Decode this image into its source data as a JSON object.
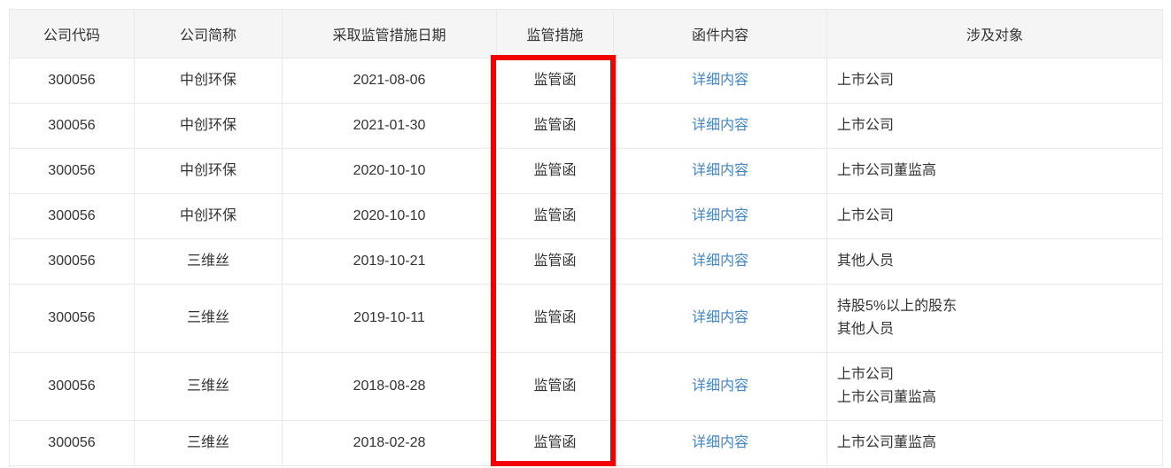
{
  "colors": {
    "link": "#4285c4",
    "highlight": "#f20000",
    "header_bg": "#f5f5f6",
    "border": "#e9e9e9",
    "text": "#333333",
    "page_bg": "#ffffff"
  },
  "table": {
    "columns": [
      {
        "key": "code",
        "label": "公司代码"
      },
      {
        "key": "name",
        "label": "公司简称"
      },
      {
        "key": "date",
        "label": "采取监管措施日期"
      },
      {
        "key": "measure",
        "label": "监管措施"
      },
      {
        "key": "letter",
        "label": "函件内容"
      },
      {
        "key": "target",
        "label": "涉及对象"
      }
    ],
    "rows": [
      {
        "code": "300056",
        "name": "中创环保",
        "date": "2021-08-06",
        "measure": "监管函",
        "letter": "详细内容",
        "targets": [
          "上市公司"
        ]
      },
      {
        "code": "300056",
        "name": "中创环保",
        "date": "2021-01-30",
        "measure": "监管函",
        "letter": "详细内容",
        "targets": [
          "上市公司"
        ]
      },
      {
        "code": "300056",
        "name": "中创环保",
        "date": "2020-10-10",
        "measure": "监管函",
        "letter": "详细内容",
        "targets": [
          "上市公司董监高"
        ]
      },
      {
        "code": "300056",
        "name": "中创环保",
        "date": "2020-10-10",
        "measure": "监管函",
        "letter": "详细内容",
        "targets": [
          "上市公司"
        ]
      },
      {
        "code": "300056",
        "name": "三维丝",
        "date": "2019-10-21",
        "measure": "监管函",
        "letter": "详细内容",
        "targets": [
          "其他人员"
        ]
      },
      {
        "code": "300056",
        "name": "三维丝",
        "date": "2019-10-11",
        "measure": "监管函",
        "letter": "详细内容",
        "targets": [
          "持股5%以上的股东",
          "其他人员"
        ]
      },
      {
        "code": "300056",
        "name": "三维丝",
        "date": "2018-08-28",
        "measure": "监管函",
        "letter": "详细内容",
        "targets": [
          "上市公司",
          "上市公司董监高"
        ]
      },
      {
        "code": "300056",
        "name": "三维丝",
        "date": "2018-02-28",
        "measure": "监管函",
        "letter": "详细内容",
        "targets": [
          "上市公司董监高"
        ]
      }
    ]
  },
  "annotation": {
    "type": "red-highlight-box",
    "highlights_column": "监管措施"
  }
}
